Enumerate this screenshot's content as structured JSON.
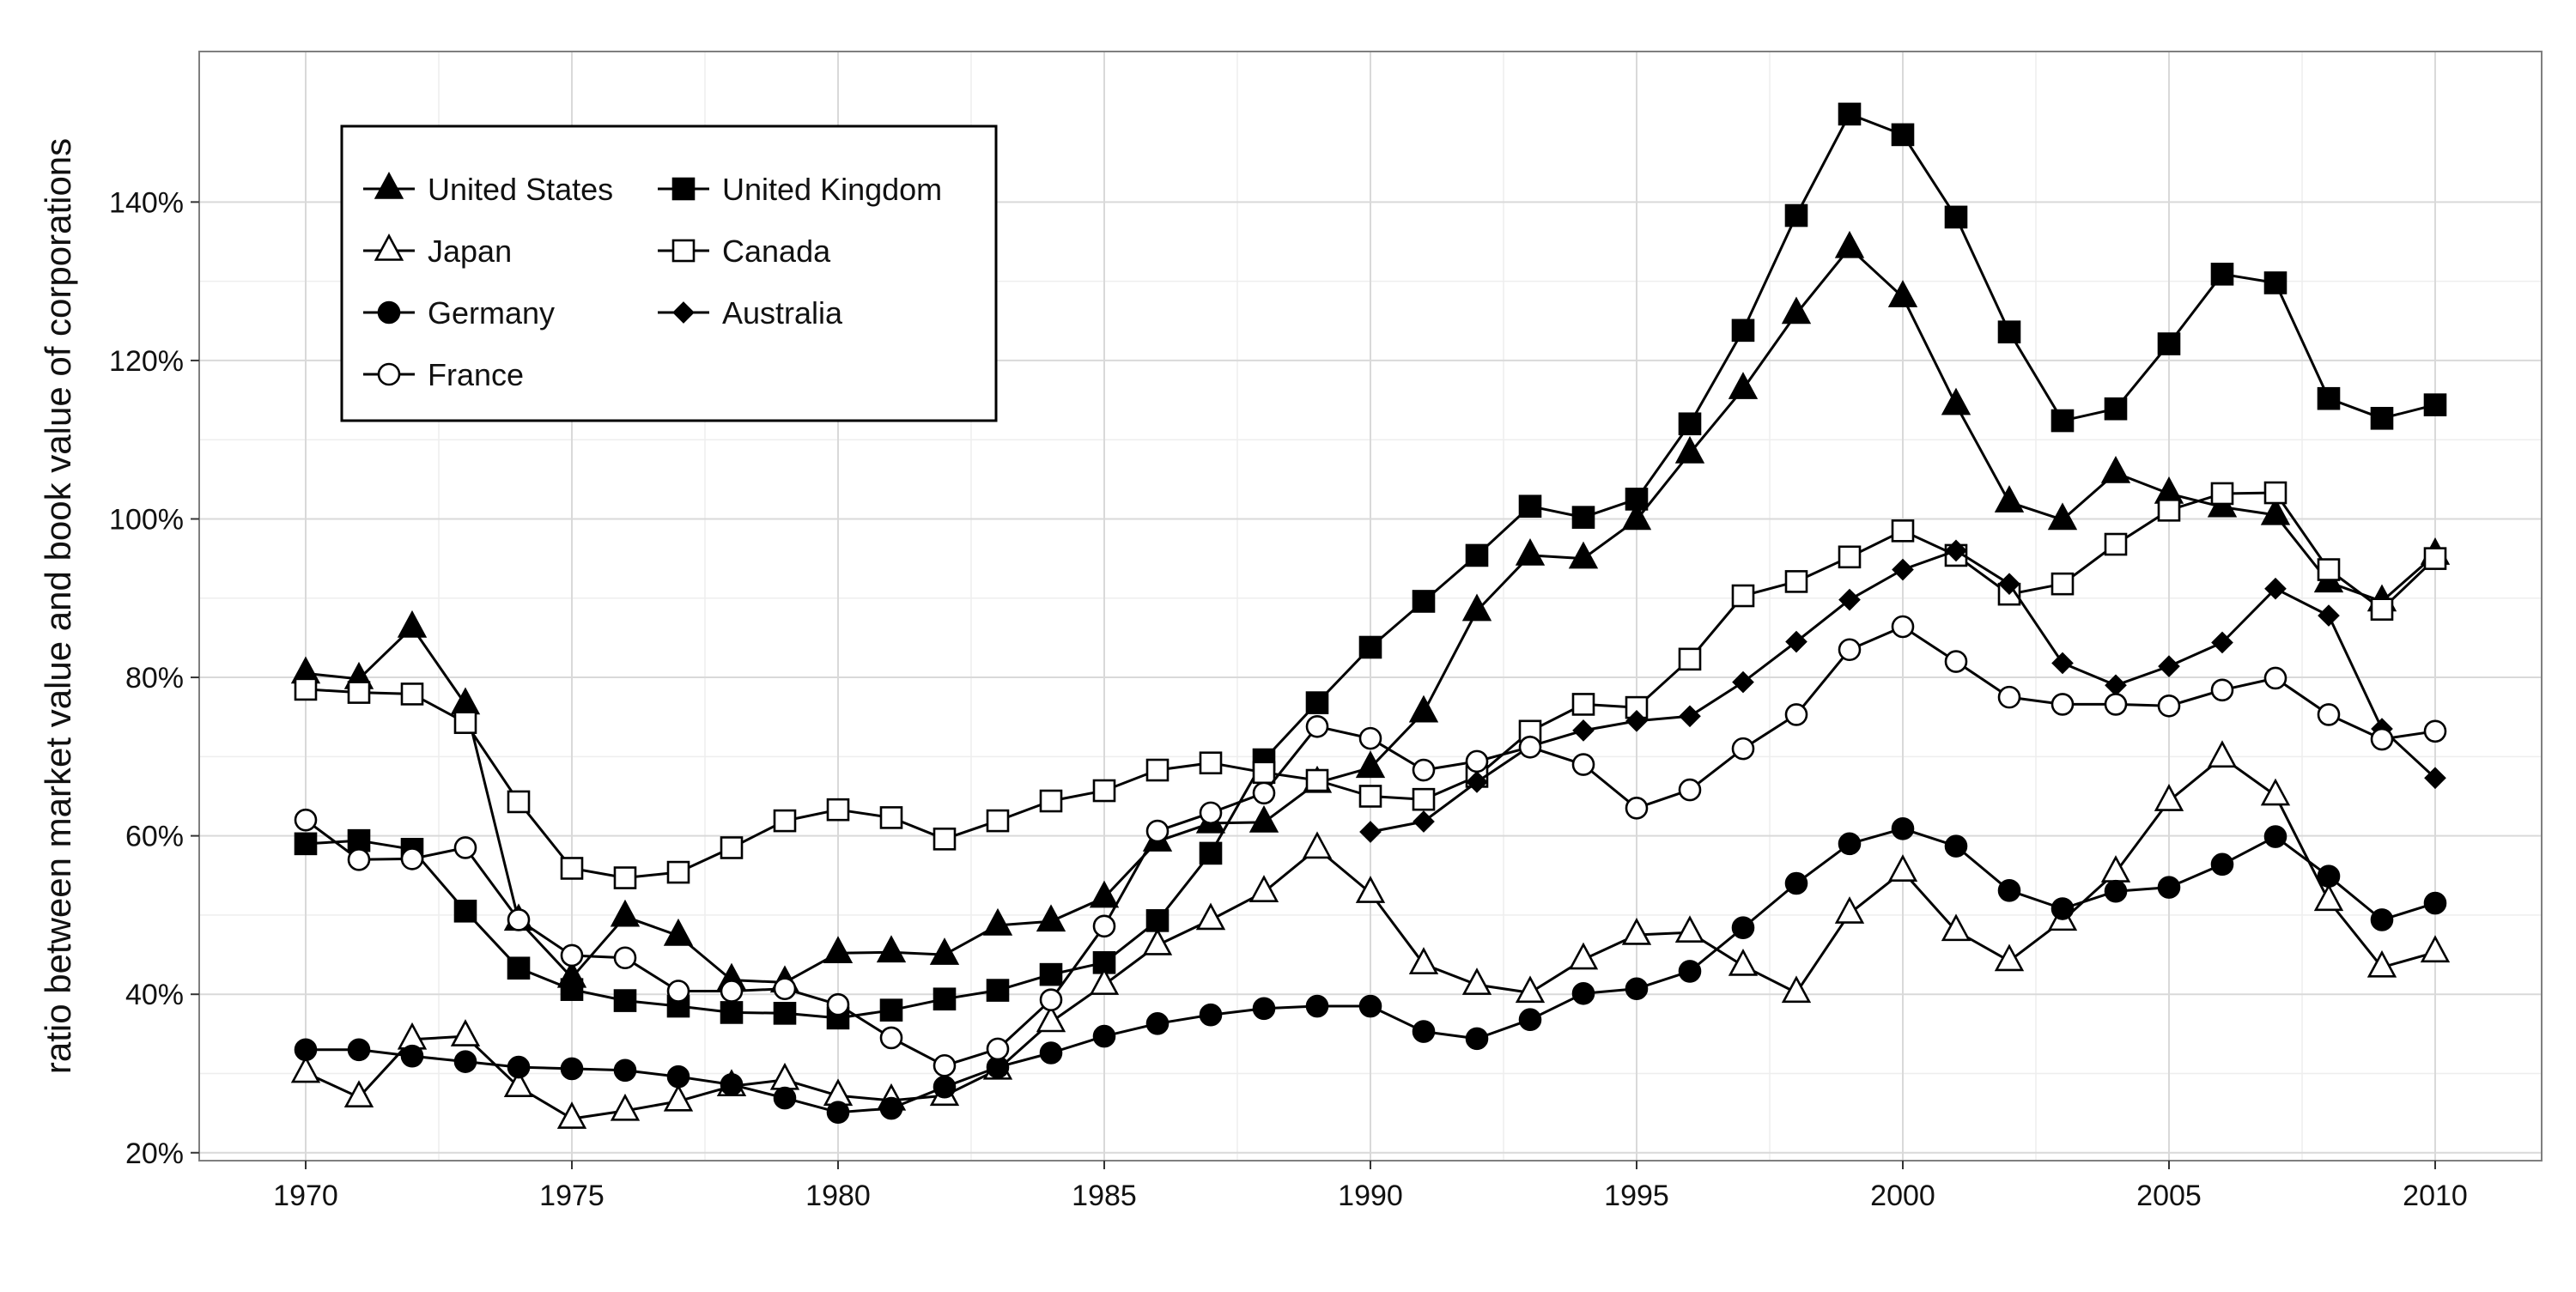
{
  "chart_data": {
    "type": "line",
    "title": "",
    "xlabel": "",
    "ylabel": "ratio between market value and book value of corporations",
    "xlim": [
      1968,
      2012
    ],
    "ylim": [
      19,
      159
    ],
    "x_ticks": [
      1970,
      1975,
      1980,
      1985,
      1990,
      1995,
      2000,
      2005,
      2010
    ],
    "y_ticks": [
      20,
      40,
      60,
      80,
      100,
      120,
      140
    ],
    "y_tick_labels": [
      "20%",
      "40%",
      "60%",
      "80%",
      "100%",
      "120%",
      "140%"
    ],
    "grid": true,
    "legend_position": "top-left",
    "series": [
      {
        "name": "United States",
        "marker": "triangle-filled",
        "x": [
          1970,
          1971,
          1972,
          1973,
          1974,
          1975,
          1976,
          1977,
          1978,
          1979,
          1980,
          1981,
          1982,
          1983,
          1984,
          1985,
          1986,
          1987,
          1988,
          1989,
          1990,
          1991,
          1992,
          1993,
          1994,
          1995,
          1996,
          1997,
          1998,
          1999,
          2000,
          2001,
          2002,
          2003,
          2004,
          2005,
          2006,
          2007,
          2008,
          2009,
          2010
        ],
        "values": [
          80.5,
          79.8,
          86.3,
          76.6,
          49.3,
          42.1,
          49.8,
          47.4,
          41.8,
          41.5,
          45.2,
          45.3,
          45.0,
          48.7,
          49.2,
          52.2,
          59.3,
          61.6,
          61.7,
          66.7,
          68.6,
          75.6,
          88.4,
          95.4,
          95.0,
          99.9,
          108.3,
          116.4,
          125.9,
          134.2,
          128.0,
          114.4,
          102.1,
          99.9,
          105.8,
          103.2,
          101.5,
          100.5,
          92.0,
          89.6,
          95.5
        ]
      },
      {
        "name": "United Kingdom",
        "marker": "square-filled",
        "x": [
          1970,
          1971,
          1972,
          1973,
          1974,
          1975,
          1976,
          1977,
          1978,
          1979,
          1980,
          1981,
          1982,
          1983,
          1984,
          1985,
          1986,
          1987,
          1988,
          1989,
          1990,
          1991,
          1992,
          1993,
          1994,
          1995,
          1996,
          1997,
          1998,
          1999,
          2000,
          2001,
          2002,
          2003,
          2004,
          2005,
          2006,
          2007,
          2008,
          2009,
          2010
        ],
        "values": [
          59.0,
          59.4,
          58.3,
          50.5,
          43.3,
          40.6,
          39.2,
          38.5,
          37.7,
          37.6,
          37.0,
          38.0,
          39.4,
          40.5,
          42.5,
          44.0,
          49.3,
          57.8,
          69.6,
          76.8,
          83.8,
          89.6,
          95.4,
          101.6,
          100.2,
          102.5,
          112.0,
          123.8,
          138.3,
          151.1,
          148.5,
          138.1,
          123.6,
          112.4,
          113.9,
          122.1,
          130.9,
          129.8,
          115.2,
          112.7,
          114.4
        ]
      },
      {
        "name": "Japan",
        "marker": "triangle-open",
        "x": [
          1970,
          1971,
          1972,
          1973,
          1974,
          1975,
          1976,
          1977,
          1978,
          1979,
          1980,
          1981,
          1982,
          1983,
          1984,
          1985,
          1986,
          1987,
          1988,
          1989,
          1990,
          1991,
          1992,
          1993,
          1994,
          1995,
          1996,
          1997,
          1998,
          1999,
          2000,
          2001,
          2002,
          2003,
          2004,
          2005,
          2006,
          2007,
          2008,
          2009,
          2010
        ],
        "values": [
          30.1,
          27.0,
          34.3,
          34.7,
          28.3,
          24.3,
          25.3,
          26.5,
          28.4,
          29.2,
          27.2,
          26.6,
          27.2,
          30.5,
          36.5,
          41.2,
          46.2,
          49.4,
          52.9,
          58.4,
          52.8,
          43.8,
          41.2,
          40.2,
          44.4,
          47.5,
          47.8,
          43.6,
          40.2,
          50.2,
          55.5,
          48.0,
          44.2,
          49.3,
          55.4,
          64.4,
          69.9,
          65.1,
          51.8,
          43.4,
          45.3
        ]
      },
      {
        "name": "Canada",
        "marker": "square-open",
        "x": [
          1970,
          1971,
          1972,
          1973,
          1974,
          1975,
          1976,
          1977,
          1978,
          1979,
          1980,
          1981,
          1982,
          1983,
          1984,
          1985,
          1986,
          1987,
          1988,
          1989,
          1990,
          1991,
          1992,
          1993,
          1994,
          1995,
          1996,
          1997,
          1998,
          1999,
          2000,
          2001,
          2002,
          2003,
          2004,
          2005,
          2006,
          2007,
          2008,
          2009,
          2010
        ],
        "values": [
          78.5,
          78.1,
          77.9,
          74.3,
          64.3,
          55.9,
          54.7,
          55.4,
          58.5,
          61.9,
          63.3,
          62.3,
          59.6,
          61.9,
          64.4,
          65.7,
          68.3,
          69.2,
          68.0,
          67.0,
          65.0,
          64.6,
          67.5,
          73.2,
          76.6,
          76.2,
          82.3,
          90.3,
          92.1,
          95.2,
          98.5,
          95.4,
          90.5,
          91.8,
          96.8,
          101.1,
          103.2,
          103.3,
          93.6,
          88.6,
          95.0
        ]
      },
      {
        "name": "Germany",
        "marker": "circle-filled",
        "x": [
          1970,
          1971,
          1972,
          1973,
          1974,
          1975,
          1976,
          1977,
          1978,
          1979,
          1980,
          1981,
          1982,
          1983,
          1984,
          1985,
          1986,
          1987,
          1988,
          1989,
          1990,
          1991,
          1992,
          1993,
          1994,
          1995,
          1996,
          1997,
          1998,
          1999,
          2000,
          2001,
          2002,
          2003,
          2004,
          2005,
          2006,
          2007,
          2008,
          2009,
          2010
        ],
        "values": [
          33.0,
          33.0,
          32.2,
          31.5,
          30.8,
          30.6,
          30.4,
          29.6,
          28.6,
          26.9,
          25.1,
          25.6,
          28.3,
          30.8,
          32.6,
          34.7,
          36.3,
          37.4,
          38.2,
          38.5,
          38.5,
          35.3,
          34.4,
          36.8,
          40.1,
          40.7,
          42.9,
          48.4,
          54.0,
          59.0,
          60.9,
          58.7,
          53.1,
          50.8,
          53.0,
          53.5,
          56.4,
          59.9,
          54.9,
          49.4,
          51.5
        ]
      },
      {
        "name": "Australia",
        "marker": "diamond-filled",
        "x": [
          1990,
          1991,
          1992,
          1993,
          1994,
          1995,
          1996,
          1997,
          1998,
          1999,
          2000,
          2001,
          2002,
          2003,
          2004,
          2005,
          2006,
          2007,
          2008,
          2009,
          2010
        ],
        "values": [
          60.5,
          61.8,
          66.8,
          71.3,
          73.3,
          74.5,
          75.1,
          79.4,
          84.5,
          89.8,
          93.6,
          96.0,
          91.8,
          81.8,
          79.0,
          81.4,
          84.4,
          91.2,
          87.8,
          73.5,
          67.3
        ]
      },
      {
        "name": "France",
        "marker": "circle-open",
        "x": [
          1970,
          1971,
          1972,
          1973,
          1974,
          1975,
          1976,
          1977,
          1978,
          1979,
          1980,
          1981,
          1982,
          1983,
          1984,
          1985,
          1986,
          1987,
          1988,
          1989,
          1990,
          1991,
          1992,
          1993,
          1994,
          1995,
          1996,
          1997,
          1998,
          1999,
          2000,
          2001,
          2002,
          2003,
          2004,
          2005,
          2006,
          2007,
          2008,
          2009,
          2010
        ],
        "values": [
          62.0,
          57.0,
          57.1,
          58.5,
          49.4,
          44.9,
          44.6,
          40.4,
          40.4,
          40.7,
          38.7,
          34.5,
          31.0,
          33.1,
          39.3,
          48.6,
          60.6,
          62.9,
          65.4,
          73.8,
          72.3,
          68.3,
          69.4,
          71.2,
          69.0,
          63.5,
          65.8,
          71.0,
          75.3,
          83.5,
          86.4,
          82.0,
          77.5,
          76.6,
          76.6,
          76.4,
          78.4,
          79.9,
          75.3,
          72.2,
          73.2
        ]
      }
    ],
    "legend": [
      {
        "label": "United States",
        "marker": "triangle-filled"
      },
      {
        "label": "United Kingdom",
        "marker": "square-filled"
      },
      {
        "label": "Japan",
        "marker": "triangle-open"
      },
      {
        "label": "Canada",
        "marker": "square-open"
      },
      {
        "label": "Germany",
        "marker": "circle-filled"
      },
      {
        "label": "Australia",
        "marker": "diamond-filled"
      },
      {
        "label": "France",
        "marker": "circle-open"
      }
    ],
    "colors": {
      "line": "#000000",
      "panel_border": "#7f7f7f",
      "grid_major": "#d9d9d9",
      "grid_minor": "#eeeeee",
      "background": "#ffffff"
    }
  }
}
